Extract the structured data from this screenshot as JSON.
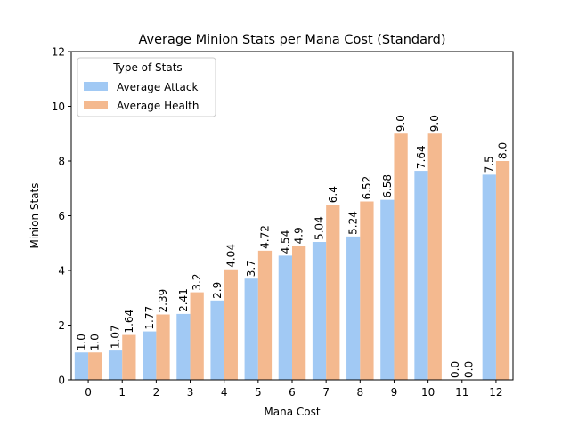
{
  "chart_data": {
    "type": "bar",
    "title": "Average Minion Stats per Mana Cost (Standard)",
    "xlabel": "Mana Cost",
    "ylabel": "Minion Stats",
    "ylim": [
      0,
      12
    ],
    "yticks": [
      0,
      2,
      4,
      6,
      8,
      10,
      12
    ],
    "grid": false,
    "legend_title": "Type of Stats",
    "legend_position": "top-left",
    "categories": [
      "0",
      "1",
      "2",
      "3",
      "4",
      "5",
      "6",
      "7",
      "8",
      "9",
      "10",
      "11",
      "12"
    ],
    "series": [
      {
        "name": "Average Attack",
        "color": "#a1c9f4",
        "values": [
          1.0,
          1.07,
          1.77,
          2.41,
          2.9,
          3.7,
          4.54,
          5.04,
          5.24,
          6.58,
          7.64,
          0.0,
          7.5
        ],
        "labels": [
          "1.0",
          "1.07",
          "1.77",
          "2.41",
          "2.9",
          "3.7",
          "4.54",
          "5.04",
          "5.24",
          "6.58",
          "7.64",
          "0.0",
          "7.5"
        ]
      },
      {
        "name": "Average Health",
        "color": "#f4b98f",
        "values": [
          1.0,
          1.64,
          2.39,
          3.2,
          4.04,
          4.72,
          4.9,
          6.4,
          6.52,
          9.0,
          9.0,
          0.0,
          8.0
        ],
        "labels": [
          "1.0",
          "1.64",
          "2.39",
          "3.2",
          "4.04",
          "4.72",
          "4.9",
          "6.4",
          "6.52",
          "9.0",
          "9.0",
          "0.0",
          "8.0"
        ]
      }
    ]
  }
}
